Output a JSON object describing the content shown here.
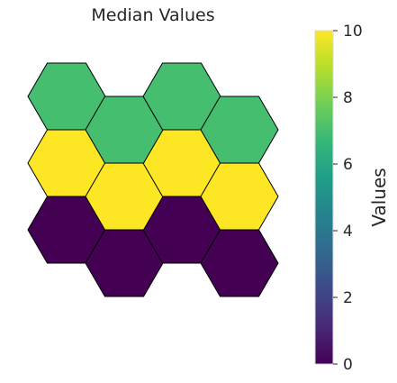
{
  "chart_data": {
    "type": "heatmap",
    "grid": "hexagonal",
    "title": "Median Values",
    "columns": 4,
    "rows": 3,
    "cells": [
      {
        "col": 0,
        "row": 0,
        "value": 0
      },
      {
        "col": 1,
        "row": 0,
        "value": 0
      },
      {
        "col": 2,
        "row": 0,
        "value": 0
      },
      {
        "col": 3,
        "row": 0,
        "value": 0
      },
      {
        "col": 0,
        "row": 1,
        "value": 10
      },
      {
        "col": 1,
        "row": 1,
        "value": 10
      },
      {
        "col": 2,
        "row": 1,
        "value": 10
      },
      {
        "col": 3,
        "row": 1,
        "value": 10
      },
      {
        "col": 0,
        "row": 2,
        "value": 7
      },
      {
        "col": 1,
        "row": 2,
        "value": 7
      },
      {
        "col": 2,
        "row": 2,
        "value": 7
      },
      {
        "col": 3,
        "row": 2,
        "value": 7
      }
    ],
    "colormap": "viridis",
    "vmin": 0,
    "vmax": 10,
    "colorbar": {
      "label": "Values",
      "ticks": [
        0,
        2,
        4,
        6,
        8,
        10
      ],
      "tick_labels": [
        "0",
        "2",
        "4",
        "6",
        "8",
        "10"
      ]
    },
    "viridis_stops": [
      "#440154",
      "#482878",
      "#3e4989",
      "#31688e",
      "#26828e",
      "#1f9e89",
      "#35b779",
      "#6ece58",
      "#b5de2b",
      "#fde725"
    ]
  }
}
